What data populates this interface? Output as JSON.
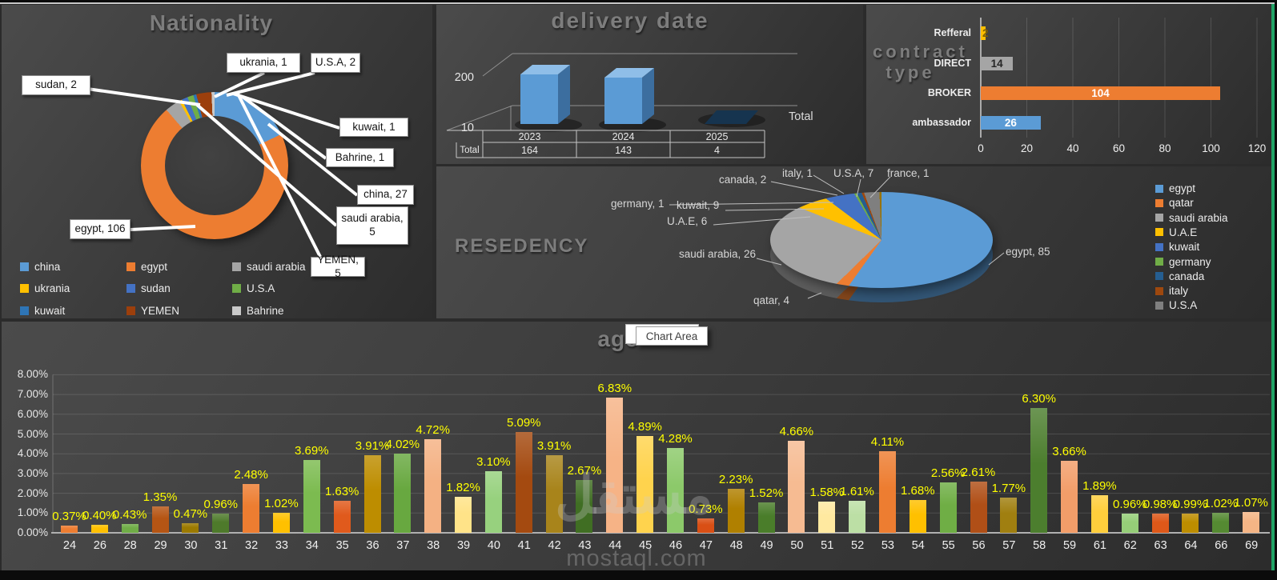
{
  "ui": {
    "tooltip": "Chart Area",
    "watermark_arabic": "مستقل",
    "watermark_latin": "mostaql.com"
  },
  "chart_data": [
    {
      "id": "nationality",
      "type": "doughnut",
      "title": "Nationality",
      "categories": [
        "china",
        "egypt",
        "saudi arabia",
        "ukrania",
        "sudan",
        "U.S.A",
        "kuwait",
        "YEMEN",
        "Bahrine"
      ],
      "values": [
        27,
        106,
        5,
        1,
        2,
        2,
        1,
        5,
        1
      ],
      "colors": [
        "#5B9BD5",
        "#ED7D31",
        "#A5A5A5",
        "#FFC000",
        "#4472C4",
        "#70AD47",
        "#2E75B6",
        "#9C3F0C",
        "#C9C9C9"
      ],
      "data_labels": [
        "china, 27",
        "egypt, 106",
        "saudi arabia, 5",
        "ukrania, 1",
        "sudan, 2",
        "U.S.A, 2",
        "kuwait, 1",
        "YEMEN, 5",
        "Bahrine, 1"
      ],
      "legend_position": "bottom"
    },
    {
      "id": "delivery-date",
      "type": "column3d",
      "title": "delivery date",
      "categories": [
        "2023",
        "2024",
        "2025"
      ],
      "series": [
        {
          "name": "Total",
          "values": [
            164,
            143,
            4
          ]
        }
      ],
      "y_axis_labels": [
        "200",
        "10"
      ],
      "bar_color": "#5B9BD5",
      "has_data_table": true,
      "legend_position": "right"
    },
    {
      "id": "contract-type",
      "type": "bar",
      "title": "contract type",
      "title_lines": [
        "contract",
        "type"
      ],
      "categories": [
        "Refferal",
        "DIRECT",
        "BROKER",
        "ambassador"
      ],
      "values": [
        2,
        14,
        104,
        26
      ],
      "colors": [
        "#FFC000",
        "#A5A5A5",
        "#ED7D31",
        "#5B9BD5"
      ],
      "value_label_colors": [
        "#7F6000",
        "#262626",
        "#FFFFFF",
        "#FFFFFF"
      ],
      "xlim": [
        0,
        120
      ],
      "x_ticks": [
        "0",
        "20",
        "40",
        "60",
        "80",
        "100",
        "120"
      ]
    },
    {
      "id": "resedency",
      "type": "pie3d",
      "title": "RESEDENCY",
      "categories": [
        "egypt",
        "qatar",
        "saudi arabia",
        "U.A.E",
        "kuwait",
        "germany",
        "canada",
        "italy",
        "U.S.A",
        "france"
      ],
      "values": [
        85,
        4,
        26,
        6,
        9,
        1,
        2,
        1,
        7,
        1
      ],
      "colors": [
        "#5B9BD5",
        "#ED7D31",
        "#A5A5A5",
        "#FFC000",
        "#4472C4",
        "#70AD47",
        "#255E91",
        "#9E480E",
        "#7F7F7F",
        "#997300"
      ],
      "data_labels": [
        "egypt, 85",
        "qatar, 4",
        "saudi arabia, 26",
        "U.A.E, 6",
        "kuwait, 9",
        "germany, 1",
        "canada, 2",
        "italy, 1",
        "U.S.A, 7",
        "france, 1"
      ],
      "legend": [
        "egypt",
        "qatar",
        "saudi arabia",
        "U.A.E",
        "kuwait",
        "germany",
        "canada",
        "italy",
        "U.S.A"
      ],
      "legend_position": "right"
    },
    {
      "id": "age",
      "type": "bar",
      "title": "age",
      "categories": [
        "24",
        "26",
        "28",
        "29",
        "30",
        "31",
        "32",
        "33",
        "34",
        "35",
        "36",
        "37",
        "38",
        "39",
        "40",
        "41",
        "42",
        "43",
        "44",
        "45",
        "46",
        "47",
        "48",
        "49",
        "50",
        "51",
        "52",
        "53",
        "54",
        "55",
        "56",
        "57",
        "58",
        "59",
        "61",
        "62",
        "63",
        "64",
        "66",
        "69"
      ],
      "values": [
        0.37,
        0.4,
        0.43,
        1.35,
        0.47,
        0.96,
        2.48,
        1.02,
        3.69,
        1.63,
        3.91,
        4.02,
        4.72,
        1.82,
        3.1,
        5.09,
        3.91,
        2.67,
        6.83,
        4.89,
        4.28,
        0.73,
        2.23,
        1.52,
        4.66,
        1.58,
        1.61,
        4.11,
        1.68,
        2.56,
        2.61,
        1.77,
        6.3,
        3.66,
        1.89,
        0.96,
        0.98,
        0.99,
        1.02,
        1.07
      ],
      "value_labels": [
        "0.37%",
        "0.40%",
        "0.43%",
        "1.35%",
        "0.47%",
        "0.96%",
        "2.48%",
        "1.02%",
        "3.69%",
        "1.63%",
        "3.91%",
        "4.02%",
        "4.72%",
        "1.82%",
        "3.10%",
        "5.09%",
        "3.91%",
        "2.67%",
        "6.83%",
        "4.89%",
        "4.28%",
        "0.73%",
        "2.23%",
        "1.52%",
        "4.66%",
        "1.58%",
        "1.61%",
        "4.11%",
        "1.68%",
        "2.56%",
        "2.61%",
        "1.77%",
        "6.30%",
        "3.66%",
        "1.89%",
        "0.96%",
        "0.98%",
        "0.99%",
        "1.02%",
        "1.07%"
      ],
      "colors": [
        "#ED7D31",
        "#FFC000",
        "#70AD47",
        "#B55514",
        "#9C7A00",
        "#4E7A2B",
        "#ED7D31",
        "#FFC000",
        "#7CBB50",
        "#E05A1C",
        "#BD8D00",
        "#68A840",
        "#F4B183",
        "#FFE388",
        "#97D17E",
        "#A44A10",
        "#A8841B",
        "#406E23",
        "#F6B386",
        "#FFD34D",
        "#8CC96A",
        "#D94F15",
        "#B08000",
        "#4A7D2A",
        "#F6BB92",
        "#FFE9A0",
        "#BCDFA5",
        "#ED7D31",
        "#FFC000",
        "#6FAE45",
        "#B04F17",
        "#A07F10",
        "#4C7E2E",
        "#F29D69",
        "#FFCE3C",
        "#96CE78",
        "#DE5819",
        "#BD8D00",
        "#558A32",
        "#F5B585"
      ],
      "ylim": [
        0,
        8
      ],
      "y_ticks": [
        "8.00%",
        "7.00%",
        "6.00%",
        "5.00%",
        "4.00%",
        "3.00%",
        "2.00%",
        "1.00%",
        "0.00%"
      ],
      "value_label_color": "#FFFF00"
    }
  ]
}
